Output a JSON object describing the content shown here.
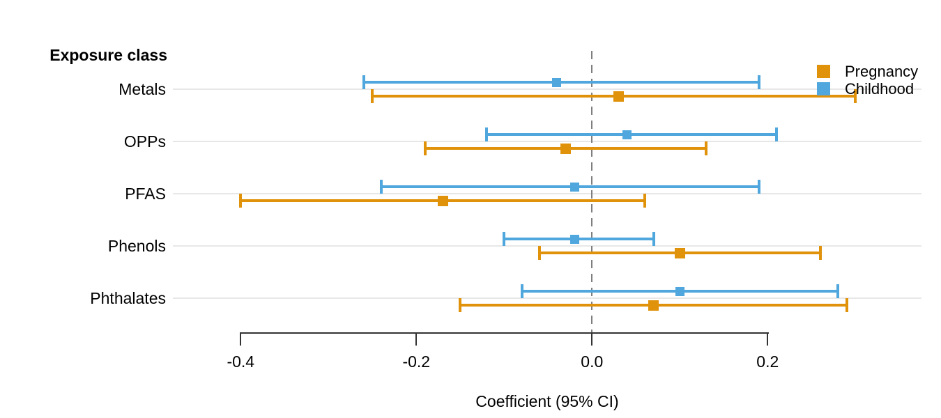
{
  "chart_data": {
    "type": "forest-plot",
    "y_axis_header": "Exposure class",
    "xlabel": "Coefficient (95% CI)",
    "categories": [
      "Metals",
      "OPPs",
      "PFAS",
      "Phenols",
      "Phthalates"
    ],
    "series": [
      {
        "name": "Pregnancy",
        "color": "#E0920B",
        "estimates": [
          0.03,
          -0.03,
          -0.17,
          0.1,
          0.07
        ],
        "ci_low": [
          -0.25,
          -0.19,
          -0.4,
          -0.06,
          -0.15
        ],
        "ci_high": [
          0.3,
          0.13,
          0.06,
          0.26,
          0.29
        ]
      },
      {
        "name": "Childhood",
        "color": "#4FA7DD",
        "estimates": [
          -0.04,
          0.04,
          -0.02,
          -0.02,
          0.1
        ],
        "ci_low": [
          -0.26,
          -0.12,
          -0.24,
          -0.1,
          -0.08
        ],
        "ci_high": [
          0.19,
          0.21,
          0.19,
          0.07,
          0.28
        ]
      }
    ],
    "x_ticks": [
      -0.4,
      -0.2,
      0.0,
      0.2
    ],
    "x_tick_labels": [
      "-0.4",
      "-0.2",
      "0.0",
      "0.2"
    ],
    "xlim": [
      -0.4,
      0.2
    ],
    "reference_line": 0.0,
    "legend_position": "top-right",
    "grid": "horizontal-per-category",
    "colors": {
      "gridline": "#E7E7E7",
      "reference_dash": "#7E7E7E",
      "axis": "#333333",
      "text": "#000000",
      "background": "#FFFFFF"
    }
  }
}
